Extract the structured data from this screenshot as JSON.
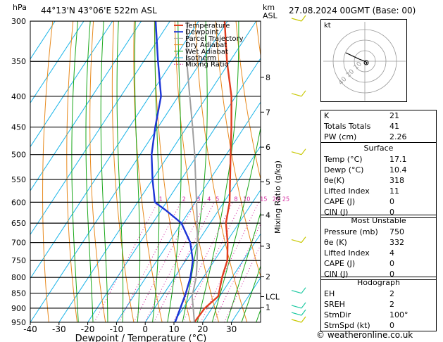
{
  "header": {
    "hpa": "hPa",
    "location": "44°13'N  43°06'E  522m  ASL",
    "km": "km",
    "asl": "ASL",
    "datetime": "27.08.2024  00GMT  (Base: 00)"
  },
  "legend": [
    "Temperature",
    "Dewpoint",
    "Parcel Trajectory",
    "Dry Adiabat",
    "Wet Adiabat",
    "Isotherm",
    "Mixing Ratio"
  ],
  "colors": {
    "temperature": "#e03c1e",
    "dewpoint": "#1c34d6",
    "parcel": "#a0a0a0",
    "dry_adiabat": "#e88a1e",
    "wet_adiabat": "#1aa81a",
    "isotherm": "#19b4e8",
    "mixing_ratio": "#d21a9a",
    "wind": "#c8c800",
    "wind_low": "#19c8a0"
  },
  "chart_data": {
    "type": "line",
    "xlabel": "Dewpoint / Temperature (°C)",
    "ylabel": "hPa",
    "right_label": "Mixing Ratio (g/kg)",
    "xlim": [
      -40,
      40
    ],
    "ylim": [
      950,
      300
    ],
    "pressure_ticks": [
      300,
      350,
      400,
      450,
      500,
      550,
      600,
      650,
      700,
      750,
      800,
      850,
      900,
      950
    ],
    "temperature_ticks": [
      -40,
      -30,
      -20,
      -10,
      0,
      10,
      20,
      30
    ],
    "height_ticks": [
      {
        "label": "8",
        "p": 372
      },
      {
        "label": "7",
        "p": 425
      },
      {
        "label": "6",
        "p": 486
      },
      {
        "label": "5",
        "p": 555
      },
      {
        "label": "4",
        "p": 630
      },
      {
        "label": "3",
        "p": 710
      },
      {
        "label": "2",
        "p": 797
      },
      {
        "label": "LCL",
        "p": 861
      },
      {
        "label": "1",
        "p": 897
      }
    ],
    "mixing_ratio_labels": [
      "1",
      "2",
      "3",
      "4",
      "5",
      "8",
      "10",
      "15",
      "20",
      "25"
    ],
    "mixing_ratio_values": [
      1,
      2,
      3,
      4,
      5,
      8,
      10,
      15,
      20,
      25
    ],
    "series": [
      {
        "name": "Temperature",
        "p": [
          950,
          900,
          860,
          800,
          750,
          700,
          650,
          600,
          550,
          500,
          450,
          400,
          350,
          300
        ],
        "t": [
          17.1,
          17.5,
          19.5,
          16.5,
          14.5,
          10.5,
          5.5,
          2.0,
          -3.0,
          -8.5,
          -14.5,
          -21.5,
          -31.0,
          -41.0
        ]
      },
      {
        "name": "Dewpoint",
        "p": [
          950,
          900,
          850,
          800,
          750,
          700,
          650,
          620,
          600,
          550,
          500,
          450,
          400,
          350,
          300
        ],
        "t": [
          10.4,
          9.0,
          7.5,
          5.5,
          2.5,
          -2.5,
          -10.0,
          -18.0,
          -24.0,
          -30.0,
          -36.0,
          -41.0,
          -46.0,
          -55.0,
          -65.0
        ]
      },
      {
        "name": "Parcel Trajectory",
        "p": [
          950,
          900,
          860,
          800,
          750,
          700,
          650,
          600,
          550,
          500,
          450,
          400,
          350,
          300
        ],
        "t": [
          17.1,
          13.5,
          10.4,
          7.5,
          4.0,
          0.0,
          -4.5,
          -9.5,
          -15.0,
          -21.0,
          -28.0,
          -36.0,
          -45.0,
          -54.0
        ]
      }
    ],
    "wind_barbs": [
      {
        "p": 300,
        "color": "yellow"
      },
      {
        "p": 400,
        "color": "yellow"
      },
      {
        "p": 500,
        "color": "yellow"
      },
      {
        "p": 700,
        "color": "yellow"
      },
      {
        "p": 850,
        "color": "teal"
      },
      {
        "p": 900,
        "color": "teal"
      },
      {
        "p": 925,
        "color": "teal"
      },
      {
        "p": 950,
        "color": "yellow"
      }
    ]
  },
  "hodograph": {
    "label": "kt",
    "ring_labels": [
      "10",
      "20",
      "40"
    ]
  },
  "indices": [
    {
      "label": "K",
      "value": "21"
    },
    {
      "label": "Totals Totals",
      "value": "41"
    },
    {
      "label": "PW (cm)",
      "value": "2.26"
    }
  ],
  "surface": {
    "title": "Surface",
    "rows": [
      {
        "label": "Temp (°C)",
        "value": "17.1"
      },
      {
        "label": "Dewp (°C)",
        "value": "10.4"
      },
      {
        "label": "θe(K)",
        "value": "318"
      },
      {
        "label": "Lifted Index",
        "value": "11"
      },
      {
        "label": "CAPE (J)",
        "value": "0"
      },
      {
        "label": "CIN (J)",
        "value": "0"
      }
    ]
  },
  "most_unstable": {
    "title": "Most Unstable",
    "rows": [
      {
        "label": "Pressure (mb)",
        "value": "750"
      },
      {
        "label": "θe (K)",
        "value": "332"
      },
      {
        "label": "Lifted Index",
        "value": "4"
      },
      {
        "label": "CAPE (J)",
        "value": "0"
      },
      {
        "label": "CIN (J)",
        "value": "0"
      }
    ]
  },
  "hodograph_stats": {
    "title": "Hodograph",
    "rows": [
      {
        "label": "EH",
        "value": "2"
      },
      {
        "label": "SREH",
        "value": "2"
      },
      {
        "label": "StmDir",
        "value": "100°"
      },
      {
        "label": "StmSpd (kt)",
        "value": "0"
      }
    ]
  },
  "credit": "© weatheronline.co.uk"
}
